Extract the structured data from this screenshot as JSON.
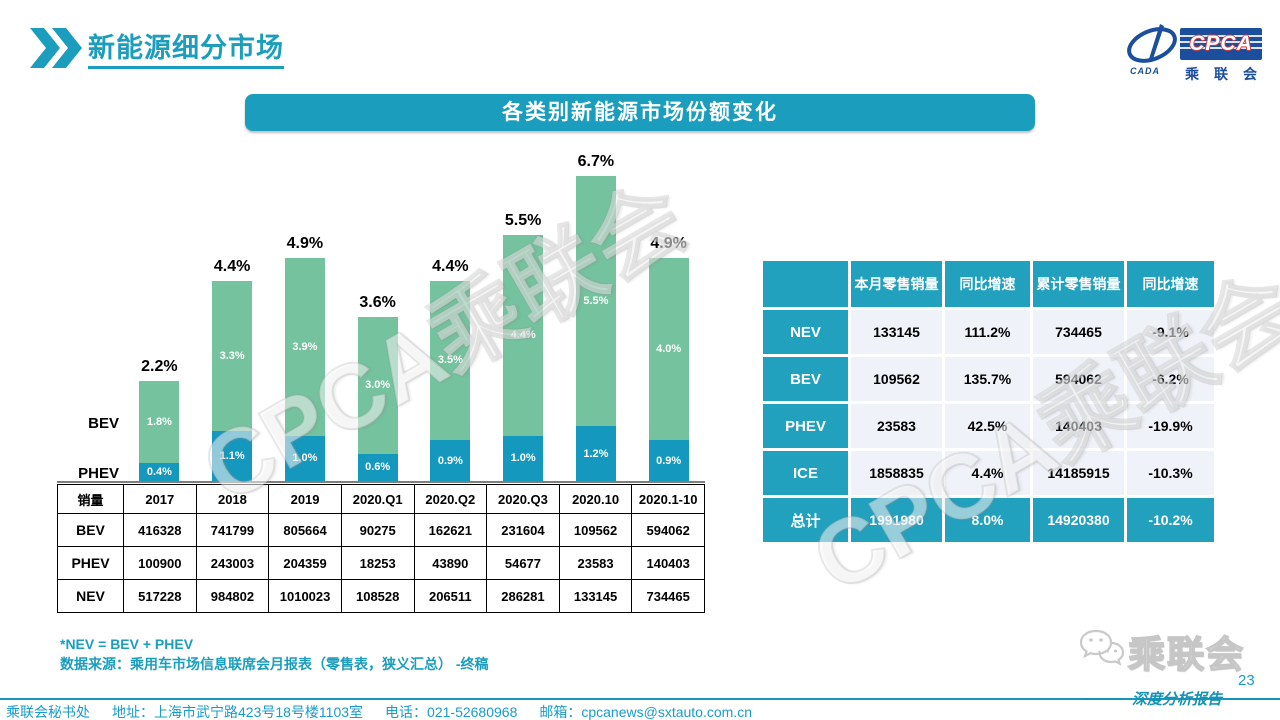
{
  "header": {
    "title": "新能源细分市场",
    "logo": {
      "emblem_text": "CADA",
      "box_text": "CPCA",
      "org_name_chars": [
        "乘",
        "联",
        "会"
      ]
    }
  },
  "banner": {
    "title": "各类别新能源市场份额变化"
  },
  "chart_data": {
    "type": "bar",
    "stacked": true,
    "title": "各类别新能源市场份额变化",
    "unit": "%",
    "categories": [
      "2017",
      "2018",
      "2019",
      "2020.Q1",
      "2020.Q2",
      "2020.Q3",
      "2020.10",
      "2020.1-10"
    ],
    "series": [
      {
        "name": "PHEV",
        "color": "#1598BE",
        "values": [
          0.4,
          1.1,
          1.0,
          0.6,
          0.9,
          1.0,
          1.2,
          0.9
        ]
      },
      {
        "name": "BEV",
        "color": "#74C29E",
        "values": [
          1.8,
          3.3,
          3.9,
          3.0,
          3.5,
          4.4,
          5.5,
          4.0
        ]
      }
    ],
    "totals": [
      2.2,
      4.4,
      4.9,
      3.6,
      4.4,
      5.5,
      6.7,
      4.9
    ],
    "ylim": [
      0,
      7.3
    ],
    "grid": false,
    "value_labels": "inside segments, white",
    "total_labels": "above bars, black",
    "series_axis_labels": [
      "BEV",
      "PHEV"
    ]
  },
  "sales_table": {
    "header": [
      "销量",
      "2017",
      "2018",
      "2019",
      "2020.Q1",
      "2020.Q2",
      "2020.Q3",
      "2020.10",
      "2020.1-10"
    ],
    "rows": [
      [
        "BEV",
        "416328",
        "741799",
        "805664",
        "90275",
        "162621",
        "231604",
        "109562",
        "594062"
      ],
      [
        "PHEV",
        "100900",
        "243003",
        "204359",
        "18253",
        "43890",
        "54677",
        "23583",
        "140403"
      ],
      [
        "NEV",
        "517228",
        "984802",
        "1010023",
        "108528",
        "206511",
        "286281",
        "133145",
        "734465"
      ]
    ]
  },
  "summary_table": {
    "columns": [
      "本月零售销量",
      "同比增速",
      "累计零售销量",
      "同比增速"
    ],
    "rows": [
      {
        "label": "NEV",
        "values": [
          "133145",
          "111.2%",
          "734465",
          "-9.1%"
        ],
        "highlight": false
      },
      {
        "label": "BEV",
        "values": [
          "109562",
          "135.7%",
          "594062",
          "-6.2%"
        ],
        "highlight": false
      },
      {
        "label": "PHEV",
        "values": [
          "23583",
          "42.5%",
          "140403",
          "-19.9%"
        ],
        "highlight": false
      },
      {
        "label": "ICE",
        "values": [
          "1858835",
          "4.4%",
          "14185915",
          "-10.3%"
        ],
        "highlight": false
      },
      {
        "label": "总计",
        "values": [
          "1991980",
          "8.0%",
          "14920380",
          "-10.2%"
        ],
        "highlight": true
      }
    ]
  },
  "notes": {
    "line1": "*NEV = BEV + PHEV",
    "line2": "数据来源：乘用车市场信息联席会月报表（零售表，狭义汇总）  -终稿"
  },
  "footer": {
    "segments": [
      "乘联会秘书处",
      "地址：上海市武宁路423号18号楼1103室",
      "电话：021-52680968",
      "邮箱：cpcanews@sxtauto.com.cn"
    ]
  },
  "bottom_right": {
    "wechat_name": "乘联会",
    "report_label": "深度分析报告",
    "page_number": "23"
  },
  "watermark": {
    "text": "CPCA乘联会"
  },
  "colors": {
    "accent_teal": "#1B9DBE",
    "table_teal": "#21A1BE",
    "bev_green": "#74C29E",
    "phev_blue": "#1598BE",
    "logo_blue": "#1C4E9E",
    "footer_text": "#199BCD",
    "summary_cell_bg": "#EFF2F8"
  }
}
